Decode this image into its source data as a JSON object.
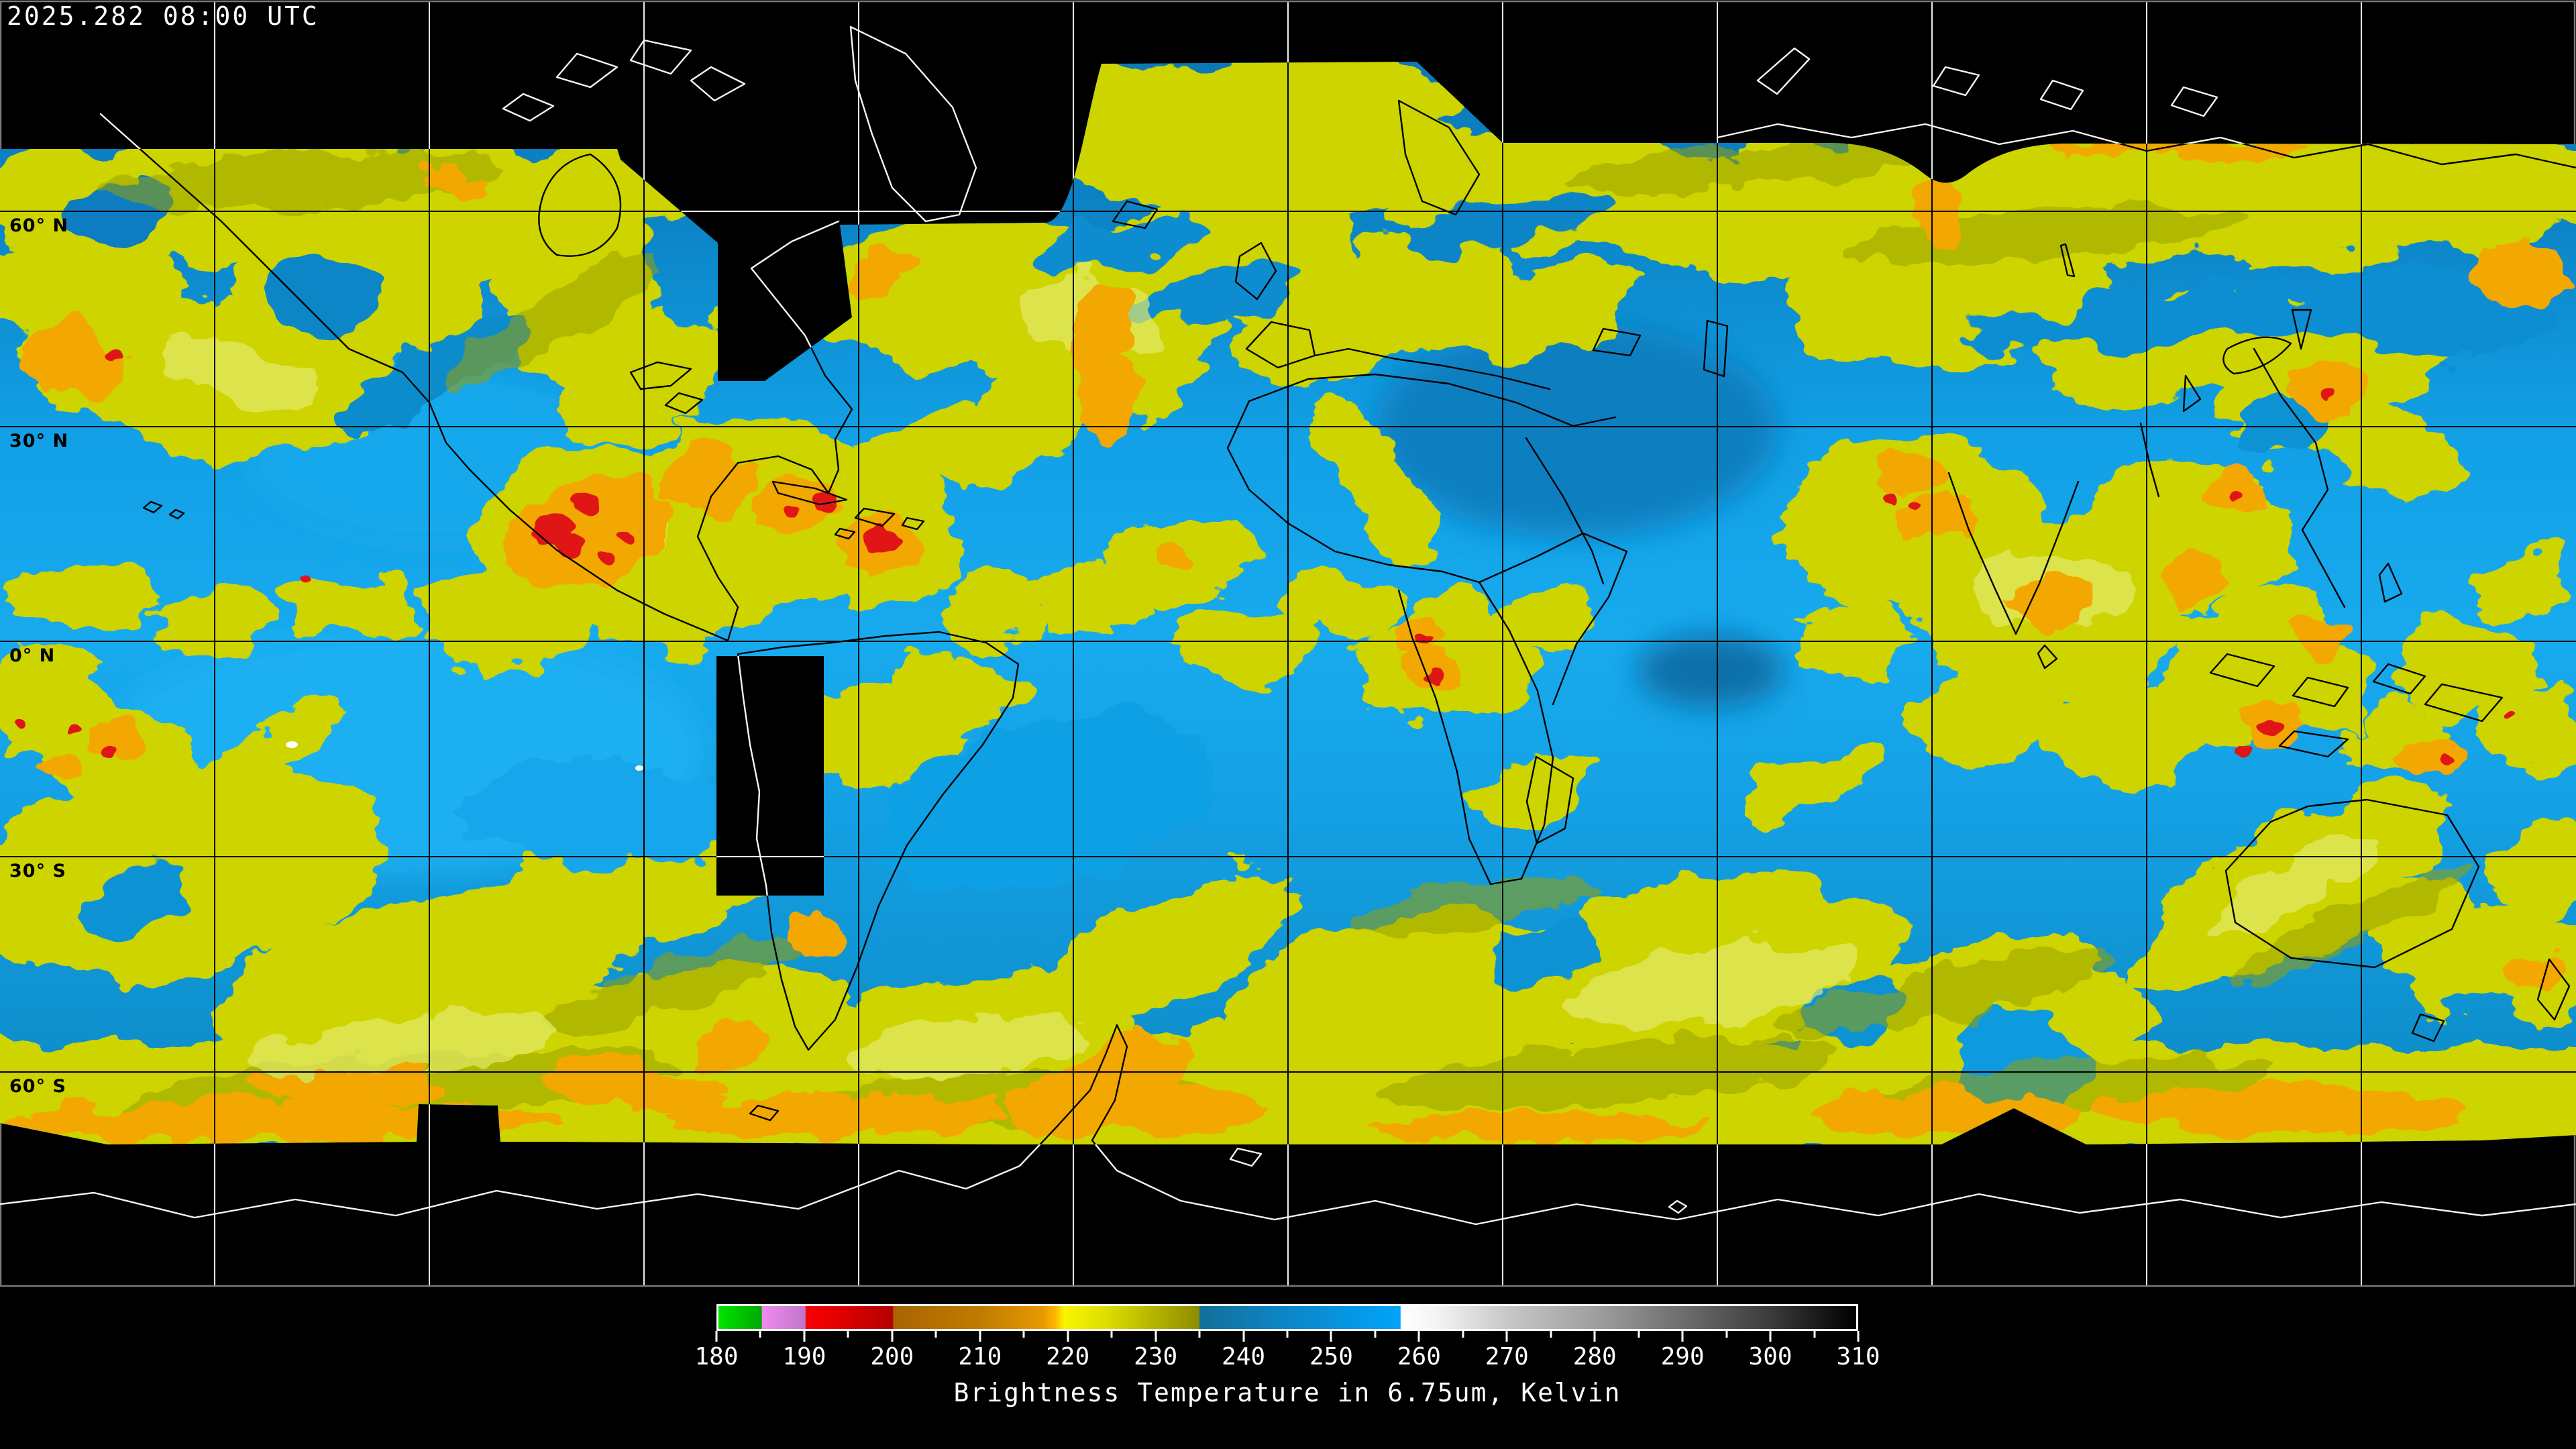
{
  "header": {
    "timestamp": "2025.282 08:00 UTC"
  },
  "map": {
    "latitude_labels": [
      {
        "label": "60° N"
      },
      {
        "label": "30° N"
      },
      {
        "label": "0° N"
      },
      {
        "label": "30° S"
      },
      {
        "label": "60° S"
      }
    ],
    "colors": {
      "background": "#000000",
      "clear_air_blue": "#129de2",
      "cloud_yellow": "#cdd404",
      "cloud_olive": "#9aa000",
      "cloud_orange": "#f2a800",
      "cloud_red": "#e01212",
      "graticule_on_void": "#efefef",
      "graticule_on_data": "#000000",
      "coastline_on_void": "#f4f4f4",
      "coastline_on_data": "#000000"
    }
  },
  "colorbar": {
    "caption": "Brightness Temperature in 6.75um, Kelvin",
    "min": 180,
    "max": 310,
    "tick_step_minor": 5,
    "tick_step_major": 10,
    "tick_labels": [
      "180",
      "190",
      "200",
      "210",
      "220",
      "230",
      "240",
      "250",
      "260",
      "270",
      "280",
      "290",
      "300",
      "310"
    ],
    "gradient_stops": [
      {
        "v": 180,
        "c": "#00e400"
      },
      {
        "v": 184.9,
        "c": "#00a800"
      },
      {
        "v": 185,
        "c": "#f08cf0"
      },
      {
        "v": 189.9,
        "c": "#bf74c8"
      },
      {
        "v": 190,
        "c": "#fa0000"
      },
      {
        "v": 199.9,
        "c": "#b40000"
      },
      {
        "v": 200,
        "c": "#a86400"
      },
      {
        "v": 210,
        "c": "#c07c00"
      },
      {
        "v": 217,
        "c": "#e89800"
      },
      {
        "v": 218.5,
        "c": "#ffb400"
      },
      {
        "v": 219.5,
        "c": "#f8f400"
      },
      {
        "v": 224,
        "c": "#e0e000"
      },
      {
        "v": 234.9,
        "c": "#8c8c00"
      },
      {
        "v": 235,
        "c": "#127099"
      },
      {
        "v": 245,
        "c": "#0c86c8"
      },
      {
        "v": 257.9,
        "c": "#00a4fa"
      },
      {
        "v": 258,
        "c": "#ffffff"
      },
      {
        "v": 262,
        "c": "#f4f4f4"
      },
      {
        "v": 270,
        "c": "#c8c8c8"
      },
      {
        "v": 280,
        "c": "#a0a0a0"
      },
      {
        "v": 290,
        "c": "#6e6e6e"
      },
      {
        "v": 300,
        "c": "#3c3c3c"
      },
      {
        "v": 310,
        "c": "#000000"
      }
    ]
  },
  "chart_data": {
    "type": "heatmap",
    "title": "Brightness Temperature in 6.75um, Kelvin",
    "timestamp": "2025.282 08:00 UTC",
    "colorbar_range_kelvin": [
      180,
      310
    ],
    "colorbar_ticks": [
      180,
      190,
      200,
      210,
      220,
      230,
      240,
      250,
      260,
      270,
      280,
      290,
      300,
      310
    ],
    "latitude_gridlines_deg": [
      60,
      30,
      0,
      -30,
      -60
    ],
    "longitude_gridline_spacing_deg": 30,
    "legend_position": "bottom"
  }
}
